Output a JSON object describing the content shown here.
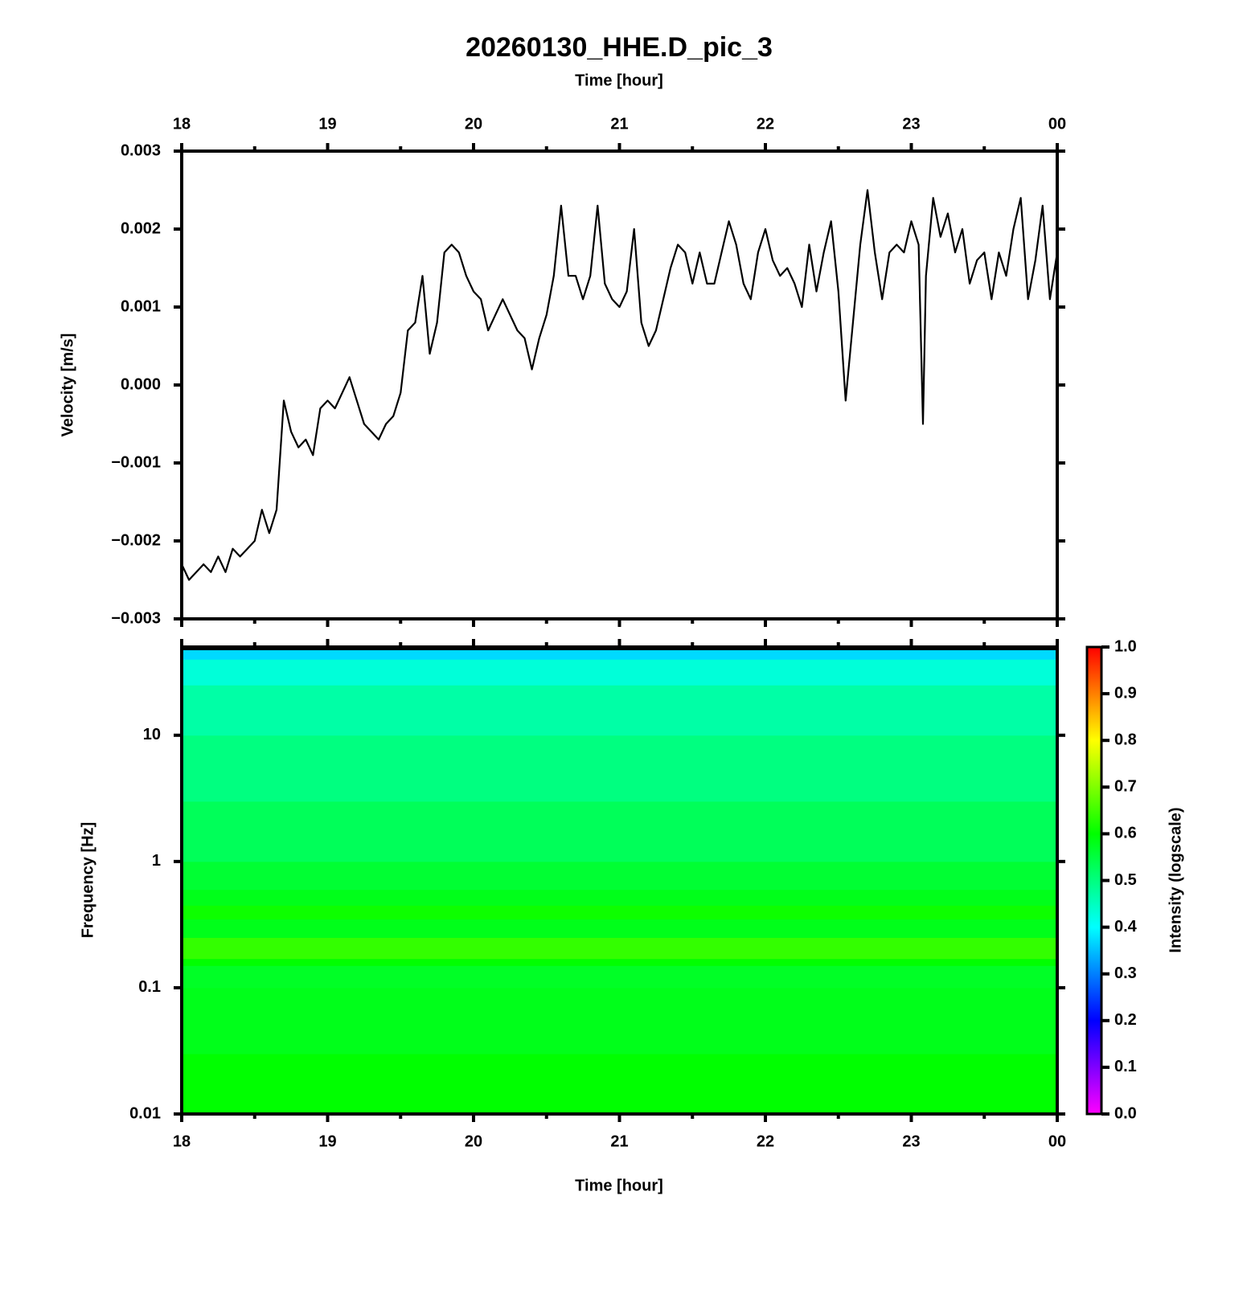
{
  "chart_data": [
    {
      "type": "line",
      "title": "20260130_HHE.D_pic_3",
      "xlabel": "Time [hour]",
      "ylabel": "Velocity [m/s]",
      "xlim": [
        18,
        24
      ],
      "xticks": [
        18,
        19,
        20,
        21,
        22,
        23,
        {
          "value": 24,
          "label": "00"
        }
      ],
      "xminorticks": [
        18.5,
        19.5,
        20.5,
        21.5,
        22.5,
        23.5
      ],
      "ylim": [
        -0.003,
        0.003
      ],
      "yticks": [
        {
          "value": -0.003,
          "label": "−0.003"
        },
        {
          "value": -0.002,
          "label": "−0.002"
        },
        {
          "value": -0.001,
          "label": "−0.001"
        },
        {
          "value": 0,
          "label": "0.000"
        },
        0.001,
        0.002,
        0.003
      ],
      "color": "#000000",
      "x": [
        18,
        18.05,
        18.1,
        18.15,
        18.2,
        18.25,
        18.3,
        18.35,
        18.4,
        18.45,
        18.5,
        18.55,
        18.6,
        18.65,
        18.7,
        18.75,
        18.8,
        18.85,
        18.9,
        18.95,
        19,
        19.05,
        19.1,
        19.15,
        19.2,
        19.25,
        19.3,
        19.35,
        19.4,
        19.45,
        19.5,
        19.55,
        19.6,
        19.65,
        19.7,
        19.75,
        19.8,
        19.85,
        19.9,
        19.95,
        20,
        20.05,
        20.1,
        20.15,
        20.2,
        20.25,
        20.3,
        20.35,
        20.4,
        20.45,
        20.5,
        20.55,
        20.6,
        20.65,
        20.7,
        20.75,
        20.8,
        20.85,
        20.9,
        20.95,
        21,
        21.05,
        21.1,
        21.15,
        21.2,
        21.25,
        21.3,
        21.35,
        21.4,
        21.45,
        21.5,
        21.55,
        21.6,
        21.65,
        21.7,
        21.75,
        21.8,
        21.85,
        21.9,
        21.95,
        22,
        22.05,
        22.1,
        22.15,
        22.2,
        22.25,
        22.3,
        22.35,
        22.4,
        22.45,
        22.5,
        22.55,
        22.6,
        22.65,
        22.7,
        22.75,
        22.8,
        22.85,
        22.9,
        22.95,
        23,
        23.05,
        23.08,
        23.1,
        23.15,
        23.2,
        23.25,
        23.3,
        23.35,
        23.4,
        23.45,
        23.5,
        23.55,
        23.6,
        23.65,
        23.7,
        23.75,
        23.8,
        23.85,
        23.9,
        23.95,
        24
      ],
      "values": [
        -0.0023,
        -0.0025,
        -0.0024,
        -0.0023,
        -0.0024,
        -0.0022,
        -0.0024,
        -0.0021,
        -0.0022,
        -0.0021,
        -0.002,
        -0.0016,
        -0.0019,
        -0.0016,
        -0.0002,
        -0.0006,
        -0.0008,
        -0.0007,
        -0.0009,
        -0.0003,
        -0.0002,
        -0.0003,
        -0.0001,
        0.0001,
        -0.0002,
        -0.0005,
        -0.0006,
        -0.0007,
        -0.0005,
        -0.0004,
        -0.0001,
        0.0007,
        0.0008,
        0.0014,
        0.0004,
        0.0008,
        0.0017,
        0.0018,
        0.0017,
        0.0014,
        0.0012,
        0.0011,
        0.0007,
        0.0009,
        0.0011,
        0.0009,
        0.0007,
        0.0006,
        0.0002,
        0.0006,
        0.0009,
        0.0014,
        0.0023,
        0.0014,
        0.0014,
        0.0011,
        0.0014,
        0.0023,
        0.0013,
        0.0011,
        0.001,
        0.0012,
        0.002,
        0.0008,
        0.0005,
        0.0007,
        0.0011,
        0.0015,
        0.0018,
        0.0017,
        0.0013,
        0.0017,
        0.0013,
        0.0013,
        0.0017,
        0.0021,
        0.0018,
        0.0013,
        0.0011,
        0.0017,
        0.002,
        0.0016,
        0.0014,
        0.0015,
        0.0013,
        0.001,
        0.0018,
        0.0012,
        0.0017,
        0.0021,
        0.0012,
        -0.0002,
        0.0008,
        0.0018,
        0.0025,
        0.0017,
        0.0011,
        0.0017,
        0.0018,
        0.0017,
        0.0021,
        0.0018,
        -0.0005,
        0.0014,
        0.0024,
        0.0019,
        0.0022,
        0.0017,
        0.002,
        0.0013,
        0.0016,
        0.0017,
        0.0011,
        0.0017,
        0.0014,
        0.002,
        0.0024,
        0.0011,
        0.0016,
        0.0023,
        0.0011,
        0.0017
      ]
    },
    {
      "type": "heatmap",
      "xlabel": "Time [hour]",
      "ylabel": "Frequency [Hz]",
      "xlim": [
        18,
        24
      ],
      "xticks": [
        18,
        19,
        20,
        21,
        22,
        23,
        {
          "value": 24,
          "label": "00"
        }
      ],
      "xminorticks": [
        18.5,
        19.5,
        20.5,
        21.5,
        22.5,
        23.5
      ],
      "ylim": [
        0.01,
        50
      ],
      "log_y": true,
      "yticks": [
        0.01,
        0.1,
        1,
        10
      ],
      "y_edges": [
        0.01,
        0.03,
        0.1,
        0.15,
        0.17,
        0.25,
        0.3,
        0.35,
        0.45,
        0.6,
        1,
        3,
        10,
        25,
        40,
        50
      ],
      "values": [
        0.6,
        0.58,
        0.57,
        0.6,
        0.64,
        0.58,
        0.58,
        0.61,
        0.58,
        0.56,
        0.53,
        0.5,
        0.47,
        0.43,
        0.37
      ],
      "colorbar_label": "Intensity (logscale)",
      "zlim": [
        0,
        1
      ],
      "zticks": [
        {
          "value": 0,
          "label": "0.0"
        },
        0.1,
        0.2,
        0.3,
        0.4,
        0.5,
        0.6,
        0.7,
        0.8,
        0.9,
        {
          "value": 1,
          "label": "1.0"
        }
      ],
      "colormap": [
        "#ff00ff",
        "#0000ff",
        "#00ffff",
        "#00ff00",
        "#ffff00",
        "#ff0000"
      ]
    }
  ]
}
